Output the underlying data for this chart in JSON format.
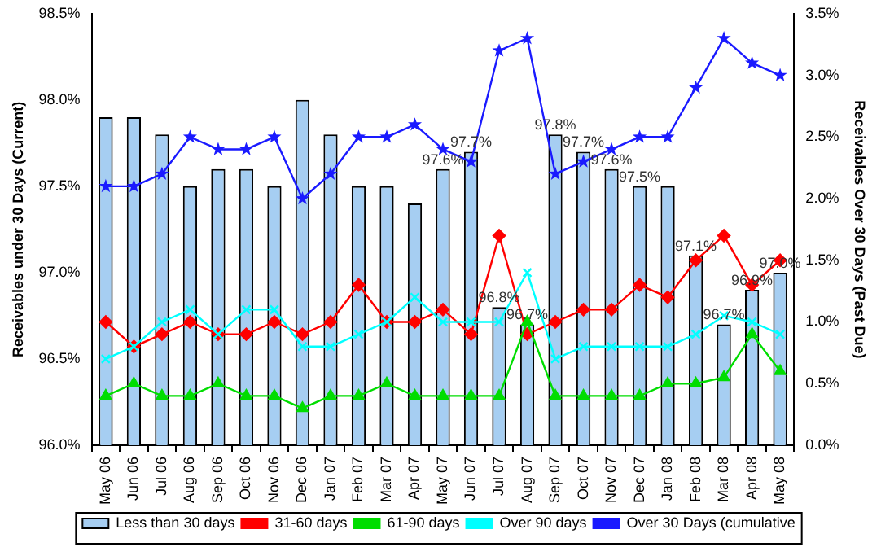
{
  "chart_data": {
    "type": "bar",
    "xlabel": null,
    "ylabel": "Receivables under 30 Days (Current)",
    "y2label": "Receivables Over 30 Days (Past Due)",
    "categories": [
      "May 06",
      "Jun 06",
      "Jul 06",
      "Aug 06",
      "Sep 06",
      "Oct 06",
      "Nov 06",
      "Dec 06",
      "Jan 07",
      "Feb 07",
      "Mar 07",
      "Apr 07",
      "May 07",
      "Jun 07",
      "Jul 07",
      "Aug 07",
      "Sep 07",
      "Oct 07",
      "Nov 07",
      "Dec 07",
      "Jan 08",
      "Feb 08",
      "Mar 08",
      "Apr 08",
      "May 08"
    ],
    "series": [
      {
        "name": "Less than 30 days",
        "color": "#a6cef2",
        "values": [
          97.9,
          97.9,
          97.8,
          97.5,
          97.6,
          97.6,
          97.5,
          98.0,
          97.8,
          97.5,
          97.5,
          97.4,
          97.6,
          97.7,
          96.8,
          96.7,
          97.8,
          97.7,
          97.6,
          97.5,
          97.5,
          97.1,
          96.7,
          96.9,
          97.0
        ],
        "value_labels": [
          null,
          null,
          null,
          null,
          null,
          null,
          null,
          null,
          null,
          null,
          null,
          null,
          "97.6%",
          "97.7%",
          "96.8%",
          "96.7%",
          "97.8%",
          "97.7%",
          "97.6%",
          "97.5%",
          null,
          "97.1%",
          "96.7%",
          "96.9%",
          "97.0%"
        ]
      },
      {
        "name": "31-60 days",
        "type": "line",
        "axis": "y2",
        "color": "#ff0000",
        "marker": "diamond",
        "values": [
          1.0,
          0.8,
          0.9,
          1.0,
          0.9,
          0.9,
          1.0,
          0.9,
          1.0,
          1.3,
          1.0,
          1.0,
          1.1,
          0.9,
          1.7,
          0.9,
          1.0,
          1.1,
          1.1,
          1.3,
          1.2,
          1.5,
          1.7,
          1.3,
          1.5
        ]
      },
      {
        "name": "61-90 days",
        "type": "line",
        "axis": "y2",
        "color": "#00dd00",
        "marker": "triangle",
        "values": [
          0.4,
          0.5,
          0.4,
          0.4,
          0.5,
          0.4,
          0.4,
          0.3,
          0.4,
          0.4,
          0.5,
          0.4,
          0.4,
          0.4,
          0.4,
          1.0,
          0.4,
          0.4,
          0.4,
          0.4,
          0.5,
          0.5,
          0.55,
          0.9,
          0.6
        ]
      },
      {
        "name": "Over 90 days",
        "type": "line",
        "axis": "y2",
        "color": "#00ffff",
        "marker": "cross",
        "values": [
          0.7,
          0.8,
          1.0,
          1.1,
          0.9,
          1.1,
          1.1,
          0.8,
          0.8,
          0.9,
          1.0,
          1.2,
          1.0,
          1.0,
          1.0,
          1.4,
          0.7,
          0.8,
          0.8,
          0.8,
          0.8,
          0.9,
          1.05,
          1.0,
          0.9
        ]
      },
      {
        "name": "Over 30 Days (cumulative",
        "type": "line",
        "axis": "y2",
        "color": "#1a1aff",
        "marker": "star",
        "values": [
          2.1,
          2.1,
          2.2,
          2.5,
          2.4,
          2.4,
          2.5,
          2.0,
          2.2,
          2.5,
          2.5,
          2.6,
          2.4,
          2.3,
          3.2,
          3.3,
          2.2,
          2.3,
          2.4,
          2.5,
          2.5,
          2.9,
          3.3,
          3.1,
          3.0
        ]
      }
    ],
    "ylim": [
      96.0,
      98.5
    ],
    "yticks": [
      {
        "value": 96.0,
        "label": "96.0%"
      },
      {
        "value": 96.5,
        "label": "96.5%"
      },
      {
        "value": 97.0,
        "label": "97.0%"
      },
      {
        "value": 97.5,
        "label": "97.5%"
      },
      {
        "value": 98.0,
        "label": "98.0%"
      },
      {
        "value": 98.5,
        "label": "98.5%"
      }
    ],
    "y2lim": [
      0,
      3.5
    ],
    "y2ticks": [
      {
        "value": 0,
        "label": "0.0%"
      },
      {
        "value": 0.5,
        "label": "0.5%"
      },
      {
        "value": 1.0,
        "label": "1.0%"
      },
      {
        "value": 1.5,
        "label": "1.5%"
      },
      {
        "value": 2.0,
        "label": "2.0%"
      },
      {
        "value": 2.5,
        "label": "2.5%"
      },
      {
        "value": 3.0,
        "label": "3.0%"
      },
      {
        "value": 3.5,
        "label": "3.5%"
      }
    ],
    "grid": false,
    "legend": "bottom"
  }
}
